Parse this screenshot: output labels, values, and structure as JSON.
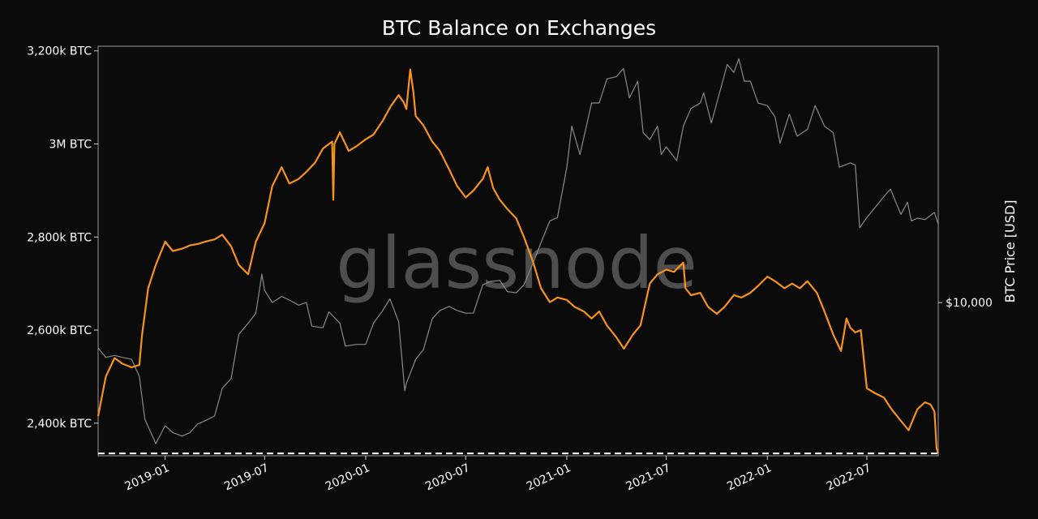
{
  "chart_data": {
    "type": "line",
    "title": "BTC Balance on Exchanges",
    "watermark": "glassnode",
    "y_left": {
      "ticks": [
        {
          "value": 2400,
          "label": "2,400k BTC"
        },
        {
          "value": 2600,
          "label": "2,600k BTC"
        },
        {
          "value": 2800,
          "label": "2,800k BTC"
        },
        {
          "value": 3000,
          "label": "3M BTC"
        },
        {
          "value": 3200,
          "label": "3,200k BTC"
        }
      ],
      "range": [
        2330,
        3210
      ],
      "unit": "k BTC"
    },
    "y_right": {
      "label": "BTC Price [USD]",
      "scale": "log",
      "ticks": [
        {
          "value": 10000,
          "label": "$10,000"
        }
      ],
      "range": [
        3000,
        75000
      ]
    },
    "x_axis": {
      "range": [
        "2018-09-01",
        "2022-11-08"
      ],
      "ticks": [
        {
          "value": "2019-01-01",
          "label": "2019-01"
        },
        {
          "value": "2019-07-01",
          "label": "2019-07"
        },
        {
          "value": "2020-01-01",
          "label": "2020-01"
        },
        {
          "value": "2020-07-01",
          "label": "2020-07"
        },
        {
          "value": "2021-01-01",
          "label": "2021-01"
        },
        {
          "value": "2021-07-01",
          "label": "2021-07"
        },
        {
          "value": "2022-01-01",
          "label": "2022-01"
        },
        {
          "value": "2022-07-01",
          "label": "2022-07"
        }
      ]
    },
    "reference_line": {
      "value": 2335,
      "style": "dashed",
      "color": "#ffffff"
    },
    "grid": false,
    "series": [
      {
        "axis": "left",
        "color": "#f7931a",
        "points": [
          [
            "2018-09-01",
            2415
          ],
          [
            "2018-09-15",
            2500
          ],
          [
            "2018-10-01",
            2540
          ],
          [
            "2018-10-15",
            2528
          ],
          [
            "2018-11-01",
            2520
          ],
          [
            "2018-11-15",
            2525
          ],
          [
            "2018-11-20",
            2590
          ],
          [
            "2018-12-01",
            2690
          ],
          [
            "2018-12-15",
            2740
          ],
          [
            "2019-01-01",
            2790
          ],
          [
            "2019-01-15",
            2770
          ],
          [
            "2019-02-01",
            2775
          ],
          [
            "2019-02-15",
            2782
          ],
          [
            "2019-03-01",
            2785
          ],
          [
            "2019-03-15",
            2790
          ],
          [
            "2019-04-01",
            2795
          ],
          [
            "2019-04-15",
            2805
          ],
          [
            "2019-05-01",
            2780
          ],
          [
            "2019-05-15",
            2740
          ],
          [
            "2019-06-01",
            2720
          ],
          [
            "2019-06-15",
            2790
          ],
          [
            "2019-07-01",
            2830
          ],
          [
            "2019-07-15",
            2910
          ],
          [
            "2019-08-01",
            2950
          ],
          [
            "2019-08-15",
            2915
          ],
          [
            "2019-09-01",
            2925
          ],
          [
            "2019-09-15",
            2940
          ],
          [
            "2019-10-01",
            2960
          ],
          [
            "2019-10-15",
            2990
          ],
          [
            "2019-11-01",
            3005
          ],
          [
            "2019-11-03",
            2880
          ],
          [
            "2019-11-05",
            3000
          ],
          [
            "2019-11-15",
            3025
          ],
          [
            "2019-12-01",
            2985
          ],
          [
            "2019-12-15",
            2995
          ],
          [
            "2020-01-01",
            3010
          ],
          [
            "2020-01-15",
            3020
          ],
          [
            "2020-02-01",
            3050
          ],
          [
            "2020-02-15",
            3080
          ],
          [
            "2020-03-01",
            3105
          ],
          [
            "2020-03-10",
            3090
          ],
          [
            "2020-03-15",
            3075
          ],
          [
            "2020-03-22",
            3160
          ],
          [
            "2020-03-28",
            3110
          ],
          [
            "2020-04-01",
            3060
          ],
          [
            "2020-04-15",
            3040
          ],
          [
            "2020-05-01",
            3005
          ],
          [
            "2020-05-15",
            2985
          ],
          [
            "2020-06-01",
            2945
          ],
          [
            "2020-06-15",
            2910
          ],
          [
            "2020-07-01",
            2885
          ],
          [
            "2020-07-15",
            2900
          ],
          [
            "2020-08-01",
            2925
          ],
          [
            "2020-08-10",
            2950
          ],
          [
            "2020-08-20",
            2905
          ],
          [
            "2020-09-01",
            2880
          ],
          [
            "2020-09-15",
            2860
          ],
          [
            "2020-10-01",
            2840
          ],
          [
            "2020-10-15",
            2800
          ],
          [
            "2020-11-01",
            2745
          ],
          [
            "2020-11-15",
            2690
          ],
          [
            "2020-12-01",
            2660
          ],
          [
            "2020-12-15",
            2670
          ],
          [
            "2021-01-01",
            2665
          ],
          [
            "2021-01-15",
            2650
          ],
          [
            "2021-02-01",
            2640
          ],
          [
            "2021-02-15",
            2625
          ],
          [
            "2021-03-01",
            2640
          ],
          [
            "2021-03-15",
            2610
          ],
          [
            "2021-04-01",
            2585
          ],
          [
            "2021-04-15",
            2560
          ],
          [
            "2021-05-01",
            2590
          ],
          [
            "2021-05-15",
            2610
          ],
          [
            "2021-06-01",
            2700
          ],
          [
            "2021-06-15",
            2720
          ],
          [
            "2021-07-01",
            2730
          ],
          [
            "2021-07-15",
            2725
          ],
          [
            "2021-08-01",
            2745
          ],
          [
            "2021-08-05",
            2690
          ],
          [
            "2021-08-15",
            2675
          ],
          [
            "2021-09-01",
            2680
          ],
          [
            "2021-09-15",
            2650
          ],
          [
            "2021-10-01",
            2635
          ],
          [
            "2021-10-15",
            2650
          ],
          [
            "2021-11-01",
            2675
          ],
          [
            "2021-11-15",
            2670
          ],
          [
            "2021-12-01",
            2680
          ],
          [
            "2021-12-15",
            2695
          ],
          [
            "2022-01-01",
            2715
          ],
          [
            "2022-01-15",
            2705
          ],
          [
            "2022-02-01",
            2690
          ],
          [
            "2022-02-15",
            2700
          ],
          [
            "2022-03-01",
            2690
          ],
          [
            "2022-03-15",
            2705
          ],
          [
            "2022-04-01",
            2680
          ],
          [
            "2022-04-15",
            2640
          ],
          [
            "2022-05-01",
            2590
          ],
          [
            "2022-05-15",
            2555
          ],
          [
            "2022-05-25",
            2625
          ],
          [
            "2022-06-01",
            2605
          ],
          [
            "2022-06-10",
            2595
          ],
          [
            "2022-06-20",
            2600
          ],
          [
            "2022-07-01",
            2475
          ],
          [
            "2022-07-15",
            2465
          ],
          [
            "2022-08-01",
            2455
          ],
          [
            "2022-08-15",
            2430
          ],
          [
            "2022-09-01",
            2405
          ],
          [
            "2022-09-15",
            2385
          ],
          [
            "2022-10-01",
            2430
          ],
          [
            "2022-10-15",
            2445
          ],
          [
            "2022-10-25",
            2440
          ],
          [
            "2022-11-01",
            2425
          ],
          [
            "2022-11-05",
            2345
          ],
          [
            "2022-11-08",
            2335
          ]
        ]
      },
      {
        "axis": "right",
        "color": "#8a8a8a",
        "points": [
          [
            "2018-09-01",
            7000
          ],
          [
            "2018-09-15",
            6500
          ],
          [
            "2018-10-01",
            6600
          ],
          [
            "2018-10-15",
            6500
          ],
          [
            "2018-11-01",
            6400
          ],
          [
            "2018-11-15",
            5600
          ],
          [
            "2018-11-25",
            4000
          ],
          [
            "2018-12-15",
            3300
          ],
          [
            "2019-01-01",
            3800
          ],
          [
            "2019-01-15",
            3600
          ],
          [
            "2019-02-01",
            3500
          ],
          [
            "2019-02-15",
            3600
          ],
          [
            "2019-03-01",
            3850
          ],
          [
            "2019-03-15",
            3950
          ],
          [
            "2019-04-01",
            4100
          ],
          [
            "2019-04-15",
            5100
          ],
          [
            "2019-05-01",
            5500
          ],
          [
            "2019-05-15",
            7800
          ],
          [
            "2019-06-01",
            8500
          ],
          [
            "2019-06-15",
            9200
          ],
          [
            "2019-06-26",
            12500
          ],
          [
            "2019-07-01",
            11000
          ],
          [
            "2019-07-15",
            10000
          ],
          [
            "2019-08-01",
            10500
          ],
          [
            "2019-08-15",
            10200
          ],
          [
            "2019-09-01",
            9800
          ],
          [
            "2019-09-15",
            10000
          ],
          [
            "2019-09-25",
            8300
          ],
          [
            "2019-10-15",
            8200
          ],
          [
            "2019-10-26",
            9300
          ],
          [
            "2019-11-15",
            8500
          ],
          [
            "2019-11-25",
            7100
          ],
          [
            "2019-12-15",
            7200
          ],
          [
            "2020-01-01",
            7200
          ],
          [
            "2020-01-15",
            8500
          ],
          [
            "2020-02-01",
            9400
          ],
          [
            "2020-02-14",
            10300
          ],
          [
            "2020-03-01",
            8600
          ],
          [
            "2020-03-12",
            5000
          ],
          [
            "2020-03-15",
            5300
          ],
          [
            "2020-04-01",
            6400
          ],
          [
            "2020-04-15",
            6900
          ],
          [
            "2020-05-01",
            8800
          ],
          [
            "2020-05-15",
            9400
          ],
          [
            "2020-06-01",
            9700
          ],
          [
            "2020-06-15",
            9400
          ],
          [
            "2020-07-01",
            9200
          ],
          [
            "2020-07-15",
            9200
          ],
          [
            "2020-08-01",
            11500
          ],
          [
            "2020-08-15",
            11800
          ],
          [
            "2020-09-01",
            11900
          ],
          [
            "2020-09-15",
            10900
          ],
          [
            "2020-10-01",
            10800
          ],
          [
            "2020-10-15",
            11500
          ],
          [
            "2020-11-01",
            13700
          ],
          [
            "2020-11-15",
            16000
          ],
          [
            "2020-12-01",
            19000
          ],
          [
            "2020-12-15",
            19500
          ],
          [
            "2021-01-01",
            29000
          ],
          [
            "2021-01-10",
            40000
          ],
          [
            "2021-01-25",
            32000
          ],
          [
            "2021-02-15",
            48000
          ],
          [
            "2021-03-01",
            48000
          ],
          [
            "2021-03-15",
            58000
          ],
          [
            "2021-04-01",
            59000
          ],
          [
            "2021-04-14",
            63000
          ],
          [
            "2021-04-25",
            50000
          ],
          [
            "2021-05-10",
            57000
          ],
          [
            "2021-05-20",
            38000
          ],
          [
            "2021-06-01",
            36000
          ],
          [
            "2021-06-15",
            40000
          ],
          [
            "2021-06-22",
            32000
          ],
          [
            "2021-07-01",
            34000
          ],
          [
            "2021-07-20",
            30500
          ],
          [
            "2021-08-01",
            40000
          ],
          [
            "2021-08-15",
            46000
          ],
          [
            "2021-09-01",
            48000
          ],
          [
            "2021-09-07",
            52000
          ],
          [
            "2021-09-21",
            41000
          ],
          [
            "2021-10-01",
            48000
          ],
          [
            "2021-10-20",
            65000
          ],
          [
            "2021-11-01",
            61000
          ],
          [
            "2021-11-10",
            68000
          ],
          [
            "2021-11-20",
            57000
          ],
          [
            "2021-12-01",
            57000
          ],
          [
            "2021-12-15",
            48000
          ],
          [
            "2022-01-01",
            47000
          ],
          [
            "2022-01-15",
            43000
          ],
          [
            "2022-01-24",
            35000
          ],
          [
            "2022-02-10",
            44000
          ],
          [
            "2022-02-24",
            37000
          ],
          [
            "2022-03-15",
            39000
          ],
          [
            "2022-03-29",
            47000
          ],
          [
            "2022-04-15",
            40000
          ],
          [
            "2022-05-01",
            38000
          ],
          [
            "2022-05-12",
            29000
          ],
          [
            "2022-06-01",
            30000
          ],
          [
            "2022-06-10",
            29500
          ],
          [
            "2022-06-18",
            18000
          ],
          [
            "2022-07-01",
            19500
          ],
          [
            "2022-07-15",
            21000
          ],
          [
            "2022-08-01",
            23000
          ],
          [
            "2022-08-13",
            24400
          ],
          [
            "2022-09-01",
            20000
          ],
          [
            "2022-09-13",
            22000
          ],
          [
            "2022-09-20",
            19000
          ],
          [
            "2022-10-01",
            19400
          ],
          [
            "2022-10-15",
            19200
          ],
          [
            "2022-11-01",
            20300
          ],
          [
            "2022-11-08",
            18500
          ]
        ]
      }
    ]
  }
}
